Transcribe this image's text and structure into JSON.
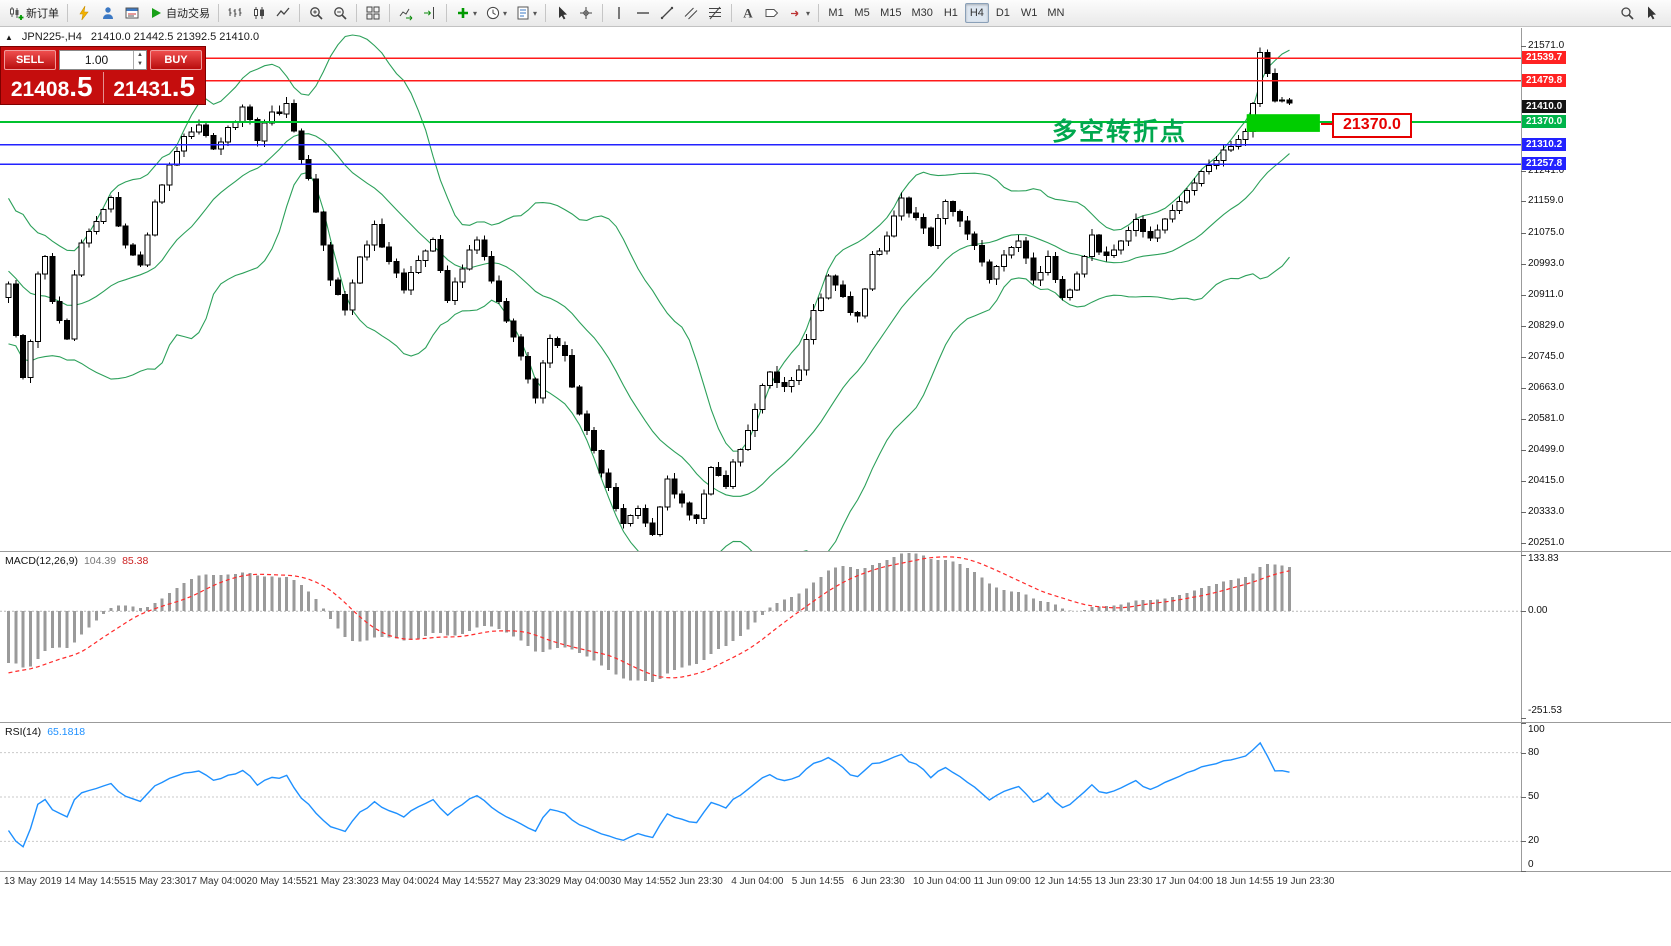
{
  "toolbar": {
    "groups": [
      [
        {
          "name": "new-order-button",
          "glyph": "neworder",
          "label": "新订单"
        }
      ],
      [
        {
          "name": "metaeditor-icon",
          "glyph": "lightning"
        },
        {
          "name": "market-watch-icon",
          "glyph": "person"
        },
        {
          "name": "data-window-icon",
          "glyph": "datawin"
        },
        {
          "name": "autotrading-button",
          "glyph": "play",
          "label": "自动交易"
        }
      ],
      [
        {
          "name": "bar-chart-icon",
          "glyph": "bars"
        },
        {
          "name": "candlestick-chart-icon",
          "glyph": "candles"
        },
        {
          "name": "line-chart-icon",
          "glyph": "linechart"
        }
      ],
      [
        {
          "name": "zoom-in-icon",
          "glyph": "zoomin"
        },
        {
          "name": "zoom-out-icon",
          "glyph": "zoomout"
        }
      ],
      [
        {
          "name": "tile-windows-icon",
          "glyph": "grid"
        }
      ],
      [
        {
          "name": "auto-scroll-icon",
          "glyph": "autoscroll"
        },
        {
          "name": "chart-shift-icon",
          "glyph": "chartshift"
        }
      ],
      [
        {
          "name": "indicators-dropdown",
          "glyph": "indicators",
          "dropdown": true
        },
        {
          "name": "periods-dropdown",
          "glyph": "clock",
          "dropdown": true
        },
        {
          "name": "templates-dropdown",
          "glyph": "template",
          "dropdown": true
        }
      ],
      [
        {
          "name": "cursor-icon",
          "glyph": "cursor"
        },
        {
          "name": "crosshair-icon",
          "glyph": "crosshair"
        }
      ],
      [
        {
          "name": "vertical-line-icon",
          "glyph": "vline"
        },
        {
          "name": "horizontal-line-icon",
          "glyph": "hline"
        },
        {
          "name": "trendline-icon",
          "glyph": "trendline"
        },
        {
          "name": "equidistant-channel-icon",
          "glyph": "channel"
        },
        {
          "name": "fibonacci-icon",
          "glyph": "fibo"
        }
      ],
      [
        {
          "name": "text-icon",
          "glyph": "textA"
        },
        {
          "name": "label-icon",
          "glyph": "label"
        },
        {
          "name": "arrows-dropdown",
          "glyph": "arrows",
          "dropdown": true
        }
      ]
    ],
    "timeframes": [
      {
        "name": "timeframe-m1",
        "label": "M1"
      },
      {
        "name": "timeframe-m5",
        "label": "M5"
      },
      {
        "name": "timeframe-m15",
        "label": "M15"
      },
      {
        "name": "timeframe-m30",
        "label": "M30"
      },
      {
        "name": "timeframe-h1",
        "label": "H1"
      },
      {
        "name": "timeframe-h4",
        "label": "H4",
        "active": true
      },
      {
        "name": "timeframe-d1",
        "label": "D1"
      },
      {
        "name": "timeframe-w1",
        "label": "W1"
      },
      {
        "name": "timeframe-mn",
        "label": "MN"
      }
    ],
    "right_icons": [
      {
        "name": "search-icon",
        "glyph": "search"
      },
      {
        "name": "pointer-icon",
        "glyph": "cursor"
      }
    ]
  },
  "chart_header": {
    "marker": "▲",
    "symbol_period": "JPN225-,H4",
    "ohlc": "21410.0 21442.5 21392.5 21410.0"
  },
  "trade_panel": {
    "sell_label": "SELL",
    "buy_label": "BUY",
    "volume": "1.00",
    "bid_main": "21408",
    "bid_frac": ".5",
    "ask_main": "21431",
    "ask_frac": ".5"
  },
  "annotation": {
    "text": "多空转折点",
    "color": "#00a84e"
  },
  "callout": {
    "text": "21370.0",
    "color": "#e60000"
  },
  "price_scale": {
    "ticks": [
      21571.0,
      21241.0,
      21159.0,
      21075.0,
      20993.0,
      20911.0,
      20829.0,
      20745.0,
      20663.0,
      20581.0,
      20499.0,
      20415.0,
      20333.0,
      20251.0
    ],
    "tags": [
      {
        "text": "21539.7",
        "bg": "#ff2222"
      },
      {
        "text": "21479.8",
        "bg": "#ff2222"
      },
      {
        "text": "21410.0",
        "bg": "#141414"
      },
      {
        "text": "21370.0",
        "bg": "#00b44a"
      },
      {
        "text": "21310.2",
        "bg": "#2222ff"
      },
      {
        "text": "21257.8",
        "bg": "#2222ff"
      }
    ]
  },
  "macd": {
    "name": "MACD(12,26,9)",
    "value_main": "104.39",
    "value_signal": "85.38",
    "scale": [
      {
        "v": 133.83,
        "t": "133.83"
      },
      {
        "v": 0,
        "t": "0.00"
      },
      {
        "v": -251.53,
        "t": "-251.53"
      }
    ]
  },
  "rsi": {
    "name": "RSI(14)",
    "value": "65.1818",
    "scale": [
      {
        "v": 100,
        "t": "100"
      },
      {
        "v": 80,
        "t": "80"
      },
      {
        "v": 50,
        "t": "50"
      },
      {
        "v": 20,
        "t": "20"
      },
      {
        "v": 0,
        "t": "0"
      }
    ],
    "levels": [
      80,
      50,
      20
    ]
  },
  "time_axis": [
    "13 May 2019",
    "14 May 14:55",
    "15 May 23:30",
    "17 May 04:00",
    "20 May 14:55",
    "21 May 23:30",
    "23 May 04:00",
    "24 May 14:55",
    "27 May 23:30",
    "29 May 04:00",
    "30 May 14:55",
    "2 Jun 23:30",
    "4 Jun 04:00",
    "5 Jun 14:55",
    "6 Jun 23:30",
    "10 Jun 04:00",
    "11 Jun 09:00",
    "12 Jun 14:55",
    "13 Jun 23:30",
    "17 Jun 04:00",
    "18 Jun 14:55",
    "19 Jun 23:30"
  ],
  "chart_data": {
    "type": "candlestick",
    "symbol": "JPN225-",
    "timeframe": "H4",
    "current_ohlc": {
      "open": 21410.0,
      "high": 21442.5,
      "low": 21392.5,
      "close": 21410.0
    },
    "y_range": [
      20230,
      21620
    ],
    "visible_bars": 176,
    "levels": [
      {
        "price": 21539.7,
        "color": "#ff1a1a",
        "width": 1.4
      },
      {
        "price": 21479.8,
        "color": "#ff1a1a",
        "width": 1.4
      },
      {
        "price": 21370.0,
        "color": "#00c22e",
        "width": 2
      },
      {
        "price": 21310.2,
        "color": "#2222ff",
        "width": 1.6
      },
      {
        "price": 21257.8,
        "color": "#2222ff",
        "width": 1.6
      }
    ],
    "rectangle": {
      "bar_start": 169.5,
      "bar_end": 179.5,
      "price_top": 21391,
      "price_bottom": 21344,
      "fill": "#00cd00"
    },
    "overlays": [
      {
        "type": "bollinger_bands",
        "period": 20,
        "deviation": 2,
        "color": "#2ca05a"
      }
    ],
    "indicators": [
      {
        "type": "MACD",
        "params": [
          12,
          26,
          9
        ],
        "current": [
          104.39,
          85.38
        ],
        "scale_min": -251.53,
        "scale_max": 133.83,
        "histogram_color": "#9a9a9a",
        "signal_color": "#ff2a2a"
      },
      {
        "type": "RSI",
        "params": [
          14
        ],
        "current": 65.1818,
        "scale_min": 0,
        "scale_max": 100,
        "color": "#1e90ff"
      }
    ],
    "candle_colors": {
      "up_fill": "#ffffff",
      "down_fill": "#000000",
      "border": "#000000"
    },
    "price_path": [
      [
        0,
        20950
      ],
      [
        1,
        20800
      ],
      [
        2,
        20690
      ],
      [
        3,
        20780
      ],
      [
        4,
        20960
      ],
      [
        5,
        21010
      ],
      [
        6,
        20900
      ],
      [
        7,
        20840
      ],
      [
        8,
        20790
      ],
      [
        9,
        20960
      ],
      [
        10,
        21050
      ],
      [
        12,
        21110
      ],
      [
        14,
        21160
      ],
      [
        16,
        21040
      ],
      [
        18,
        20980
      ],
      [
        20,
        21160
      ],
      [
        22,
        21260
      ],
      [
        24,
        21330
      ],
      [
        26,
        21360
      ],
      [
        28,
        21300
      ],
      [
        30,
        21350
      ],
      [
        32,
        21410
      ],
      [
        34,
        21330
      ],
      [
        36,
        21390
      ],
      [
        38,
        21410
      ],
      [
        40,
        21280
      ],
      [
        42,
        21140
      ],
      [
        44,
        20950
      ],
      [
        46,
        20880
      ],
      [
        48,
        21010
      ],
      [
        50,
        21090
      ],
      [
        52,
        21000
      ],
      [
        54,
        20920
      ],
      [
        56,
        21010
      ],
      [
        58,
        21060
      ],
      [
        60,
        20900
      ],
      [
        62,
        20990
      ],
      [
        64,
        21060
      ],
      [
        66,
        20950
      ],
      [
        68,
        20850
      ],
      [
        70,
        20740
      ],
      [
        72,
        20640
      ],
      [
        74,
        20800
      ],
      [
        76,
        20740
      ],
      [
        78,
        20590
      ],
      [
        80,
        20490
      ],
      [
        82,
        20390
      ],
      [
        84,
        20300
      ],
      [
        86,
        20340
      ],
      [
        88,
        20280
      ],
      [
        90,
        20430
      ],
      [
        92,
        20350
      ],
      [
        94,
        20310
      ],
      [
        96,
        20460
      ],
      [
        98,
        20410
      ],
      [
        100,
        20510
      ],
      [
        102,
        20610
      ],
      [
        104,
        20710
      ],
      [
        106,
        20660
      ],
      [
        108,
        20710
      ],
      [
        110,
        20860
      ],
      [
        112,
        20960
      ],
      [
        114,
        20900
      ],
      [
        116,
        20850
      ],
      [
        118,
        21010
      ],
      [
        120,
        21060
      ],
      [
        122,
        21160
      ],
      [
        124,
        21110
      ],
      [
        126,
        21050
      ],
      [
        128,
        21160
      ],
      [
        130,
        21110
      ],
      [
        132,
        21050
      ],
      [
        134,
        20950
      ],
      [
        136,
        21010
      ],
      [
        138,
        21060
      ],
      [
        140,
        20950
      ],
      [
        142,
        21010
      ],
      [
        144,
        20900
      ],
      [
        146,
        20960
      ],
      [
        148,
        21060
      ],
      [
        150,
        21010
      ],
      [
        152,
        21060
      ],
      [
        154,
        21110
      ],
      [
        156,
        21060
      ],
      [
        158,
        21110
      ],
      [
        160,
        21160
      ],
      [
        162,
        21210
      ],
      [
        164,
        21260
      ],
      [
        166,
        21290
      ],
      [
        168,
        21330
      ],
      [
        169,
        21350
      ],
      [
        170,
        21430
      ],
      [
        171,
        21555
      ],
      [
        172,
        21495
      ],
      [
        173,
        21435
      ],
      [
        174,
        21425
      ],
      [
        175,
        21410
      ]
    ],
    "seed_path_before_visible": [
      [
        -30,
        21600
      ],
      [
        -26,
        21480
      ],
      [
        -22,
        21330
      ],
      [
        -18,
        21150
      ],
      [
        -14,
        21020
      ],
      [
        -10,
        20950
      ],
      [
        -7,
        20860
      ],
      [
        -4,
        20920
      ],
      [
        -2,
        20870
      ],
      [
        -1,
        20900
      ]
    ]
  }
}
